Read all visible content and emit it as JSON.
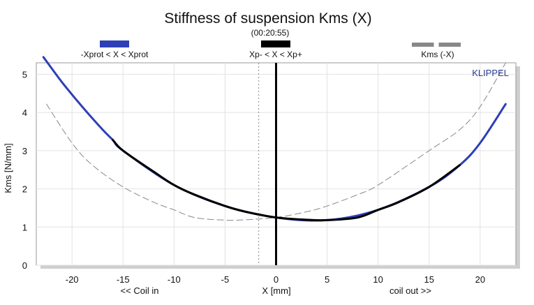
{
  "chart_data": {
    "type": "line",
    "title": "Stiffness of suspension Kms (X)",
    "subtitle": "(00:20:55)",
    "brand": "KLIPPEL",
    "xlabel": "X [mm]",
    "xlabel_left": "<< Coil in",
    "xlabel_right": "coil out >>",
    "ylabel": "Kms [N/mm]",
    "xlim": [
      -23.5,
      23.5
    ],
    "ylim": [
      0,
      5.3
    ],
    "x_ticks": [
      -20,
      -15,
      -10,
      -5,
      0,
      5,
      10,
      15,
      20
    ],
    "y_ticks": [
      0,
      1,
      2,
      3,
      4,
      5
    ],
    "x_tick_labels": [
      "-20",
      "-15",
      "-10",
      "-5",
      "0",
      "5",
      "10",
      "15",
      "20"
    ],
    "y_tick_labels": [
      "0",
      "1",
      "2",
      "3",
      "4",
      "5"
    ],
    "grid": true,
    "legend": [
      {
        "label": "-Xprot < X < Xprot",
        "color": "#2e3fb5",
        "style": "solid"
      },
      {
        "label": "Xp- < X < Xp+",
        "color": "#000000",
        "style": "solid"
      },
      {
        "label": "Kms (-X)",
        "color": "#888888",
        "style": "dashed"
      }
    ],
    "vertical_lines": [
      {
        "x": 0,
        "color": "#000000",
        "style": "solid"
      },
      {
        "x": -1.7,
        "color": "#888888",
        "style": "dotted"
      }
    ],
    "series": [
      {
        "name": "-Xprot < X < Xprot",
        "color": "#2e3fb5",
        "style": "solid",
        "x": [
          -22.8,
          -21,
          -19,
          -17,
          -16,
          -15,
          -10,
          -5,
          0,
          5,
          10,
          15,
          18,
          20,
          22.5
        ],
        "y": [
          5.45,
          4.8,
          4.15,
          3.55,
          3.28,
          3.0,
          2.1,
          1.55,
          1.25,
          1.18,
          1.45,
          2.05,
          2.62,
          3.2,
          4.22
        ]
      },
      {
        "name": "Xp- < X < Xp+",
        "color": "#000000",
        "style": "solid",
        "x": [
          -16,
          -15,
          -12,
          -10,
          -8,
          -5,
          -3,
          0,
          3,
          5,
          8,
          10,
          12,
          15,
          18
        ],
        "y": [
          3.28,
          3.0,
          2.45,
          2.1,
          1.85,
          1.55,
          1.4,
          1.25,
          1.19,
          1.18,
          1.25,
          1.45,
          1.65,
          2.05,
          2.62
        ]
      },
      {
        "name": "Kms (-X)",
        "color": "#888888",
        "style": "dashed",
        "x": [
          -22.5,
          -20,
          -18,
          -15,
          -12,
          -10,
          -8,
          -5,
          -3,
          0,
          3,
          5,
          8,
          10,
          15,
          18,
          20,
          22.5
        ],
        "y": [
          4.22,
          3.2,
          2.62,
          2.05,
          1.65,
          1.45,
          1.25,
          1.18,
          1.19,
          1.25,
          1.4,
          1.55,
          1.85,
          2.1,
          3.0,
          3.55,
          4.15,
          5.3
        ]
      }
    ]
  }
}
